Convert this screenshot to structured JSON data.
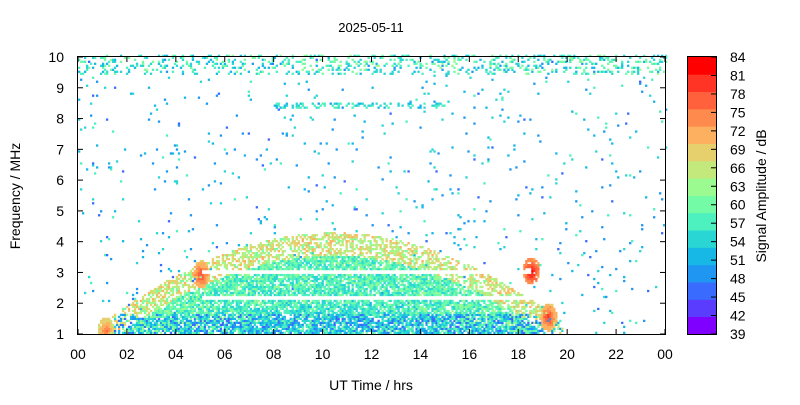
{
  "chart_data": {
    "type": "heatmap",
    "title": "2025-05-11",
    "xlabel": "UT Time / hrs",
    "ylabel": "Frequency / MHz",
    "colorbar_label": "Signal Amplitude / dB",
    "xlim": [
      0,
      24
    ],
    "ylim": [
      1,
      10
    ],
    "x_ticks": [
      "00",
      "02",
      "04",
      "06",
      "08",
      "10",
      "12",
      "14",
      "16",
      "18",
      "20",
      "22",
      "00"
    ],
    "y_ticks": [
      "1",
      "2",
      "3",
      "4",
      "5",
      "6",
      "7",
      "8",
      "9",
      "10"
    ],
    "colorbar_ticks": [
      "84",
      "81",
      "78",
      "75",
      "72",
      "69",
      "66",
      "63",
      "60",
      "57",
      "54",
      "51",
      "48",
      "45",
      "42",
      "39"
    ],
    "colorscale": [
      "#7f00ff",
      "#5a3cff",
      "#3a6bff",
      "#1f97f2",
      "#17b8e6",
      "#2ad6d4",
      "#4df0bf",
      "#74fba5",
      "#9bfa90",
      "#c3e97c",
      "#e6d06e",
      "#fdb05f",
      "#ff8a4e",
      "#ff613c",
      "#ff3425",
      "#ff0000"
    ],
    "amplitude_range_db": [
      39,
      84
    ],
    "features": {
      "daytime_band": {
        "start_hr": 1.0,
        "end_hr": 19.8,
        "max_freq_mhz": 4.0,
        "min_freq_mhz": 1.0
      },
      "interference_lines_mhz": [
        2.15,
        2.95
      ],
      "top_noise_band_mhz": [
        9.4,
        9.8
      ],
      "hotspots": [
        {
          "time_hr": 5.0,
          "freq_mhz": 2.9,
          "amplitude_db": 81
        },
        {
          "time_hr": 18.5,
          "freq_mhz": 3.0,
          "amplitude_db": 84
        },
        {
          "time_hr": 1.1,
          "freq_mhz": 1.05,
          "amplitude_db": 78
        },
        {
          "time_hr": 19.2,
          "freq_mhz": 1.5,
          "amplitude_db": 81
        }
      ]
    }
  }
}
